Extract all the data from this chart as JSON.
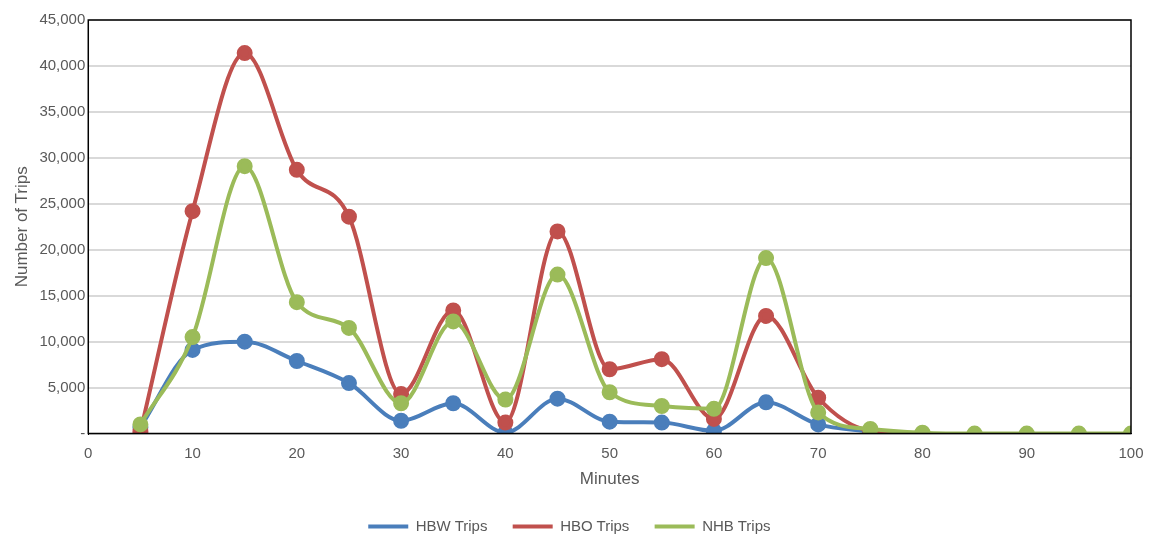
{
  "chart_data": {
    "type": "line",
    "xlabel": "Minutes",
    "ylabel": "Number of Trips",
    "x": [
      5,
      10,
      15,
      20,
      25,
      30,
      35,
      40,
      45,
      50,
      55,
      60,
      65,
      70,
      75,
      80,
      85,
      90,
      95,
      100
    ],
    "series": [
      {
        "name": "HBW Trips",
        "color": "#4a7ebb",
        "values": [
          700,
          9100,
          10000,
          7900,
          5500,
          1400,
          3300,
          100,
          3800,
          1300,
          1200,
          300,
          3400,
          1000,
          200,
          null,
          null,
          null,
          null,
          null
        ]
      },
      {
        "name": "HBO Trips",
        "color": "#c0504d",
        "values": [
          200,
          24200,
          41400,
          28700,
          23600,
          4300,
          13400,
          1200,
          22000,
          7000,
          8100,
          1600,
          12800,
          3900,
          300,
          0,
          null,
          null,
          null,
          null
        ]
      },
      {
        "name": "NHB Trips",
        "color": "#9bbb59",
        "values": [
          1000,
          10500,
          29100,
          14300,
          11500,
          3300,
          12200,
          3700,
          17300,
          4500,
          3000,
          2700,
          19100,
          2300,
          500,
          100,
          0,
          0,
          0,
          0
        ]
      }
    ],
    "xlim": [
      0,
      100
    ],
    "xticks": [
      0,
      10,
      20,
      30,
      40,
      50,
      60,
      70,
      80,
      90,
      100
    ],
    "ylim": [
      0,
      45000
    ],
    "yticks": [
      {
        "value": 0,
        "label": "-"
      },
      {
        "value": 5000,
        "label": "5,000"
      },
      {
        "value": 10000,
        "label": "10,000"
      },
      {
        "value": 15000,
        "label": "15,000"
      },
      {
        "value": 20000,
        "label": "20,000"
      },
      {
        "value": 25000,
        "label": "25,000"
      },
      {
        "value": 30000,
        "label": "30,000"
      },
      {
        "value": 35000,
        "label": "35,000"
      },
      {
        "value": 40000,
        "label": "40,000"
      },
      {
        "value": 45000,
        "label": "45,000"
      }
    ],
    "grid": "y",
    "legend": "bottom",
    "marker": "circle",
    "line_style": "solid"
  }
}
